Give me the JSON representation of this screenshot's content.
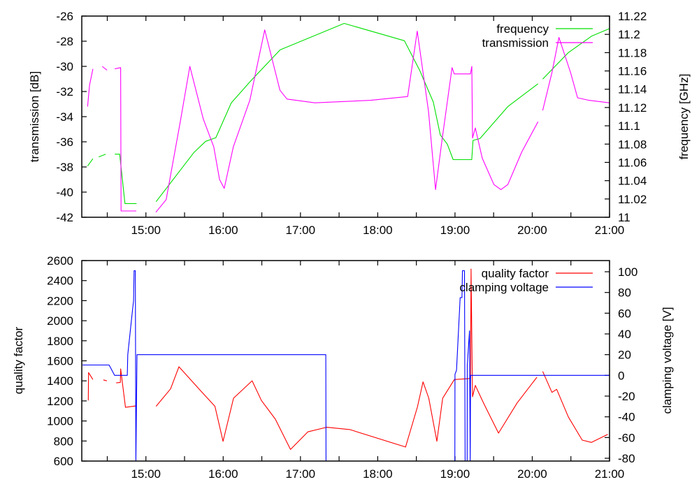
{
  "chart_data": [
    {
      "type": "line",
      "xlabel": "",
      "ylabel": "transmission [dB]",
      "y2label": "frequency [GHz]",
      "xlim": [
        14.17,
        21.0
      ],
      "ylim": [
        -42,
        -26
      ],
      "y2lim": [
        11,
        11.22
      ],
      "xticks": [
        "15:00",
        "16:00",
        "17:00",
        "18:00",
        "19:00",
        "20:00",
        "21:00"
      ],
      "xtick_values": [
        15,
        16,
        17,
        18,
        19,
        20,
        21
      ],
      "yticks": [
        -26,
        -28,
        -30,
        -32,
        -34,
        -36,
        -38,
        -40,
        -42
      ],
      "y2ticks": [
        "11.22",
        "11.2",
        "11.18",
        "11.16",
        "11.14",
        "11.12",
        "11.1",
        "11.08",
        "11.06",
        "11.04",
        "11.02",
        "11"
      ],
      "legend_position": "top-right",
      "series": [
        {
          "name": "frequency",
          "axis": "y2",
          "color": "#00e000",
          "segments": [
            [
              [
                14.245,
                11.056
              ],
              [
                14.314,
                11.064
              ]
            ],
            [
              [
                14.389,
                11.066
              ],
              [
                14.479,
                11.069
              ]
            ],
            [
              [
                14.597,
                11.069
              ],
              [
                14.66,
                11.069
              ],
              [
                14.729,
                11.015
              ],
              [
                14.879,
                11.015
              ]
            ],
            [
              [
                15.132,
                11.017
              ],
              [
                15.623,
                11.071
              ],
              [
                15.773,
                11.083
              ],
              [
                15.905,
                11.087
              ],
              [
                16.104,
                11.125
              ],
              [
                16.345,
                11.148
              ],
              [
                16.736,
                11.183
              ],
              [
                17.566,
                11.212
              ],
              [
                18.345,
                11.193
              ],
              [
                18.541,
                11.161
              ],
              [
                18.719,
                11.126
              ],
              [
                18.81,
                11.09
              ],
              [
                18.9,
                11.08
              ],
              [
                18.976,
                11.063
              ],
              [
                19.217,
                11.063
              ],
              [
                19.233,
                11.084
              ],
              [
                19.323,
                11.086
              ],
              [
                19.684,
                11.121
              ],
              [
                20.075,
                11.146
              ]
            ],
            [
              [
                20.135,
                11.151
              ],
              [
                20.466,
                11.18
              ],
              [
                20.767,
                11.198
              ],
              [
                20.993,
                11.206
              ]
            ]
          ]
        },
        {
          "name": "transmission",
          "axis": "y",
          "color": "#ff00ff",
          "segments": [
            [
              [
                14.245,
                -33.2
              ],
              [
                14.27,
                -31.5
              ],
              [
                14.314,
                -30.2
              ]
            ],
            [
              [
                14.434,
                -30.0
              ],
              [
                14.497,
                -30.3
              ]
            ],
            [
              [
                14.597,
                -30.2
              ],
              [
                14.673,
                -30.1
              ],
              [
                14.678,
                -41.5
              ],
              [
                14.876,
                -41.5
              ]
            ],
            [
              [
                15.129,
                -41.6
              ],
              [
                15.262,
                -40.6
              ],
              [
                15.442,
                -34.5
              ],
              [
                15.569,
                -30.0
              ],
              [
                15.743,
                -34.2
              ],
              [
                15.878,
                -36.4
              ],
              [
                15.953,
                -39.0
              ],
              [
                16.014,
                -39.7
              ],
              [
                16.131,
                -36.4
              ],
              [
                16.345,
                -32.7
              ],
              [
                16.537,
                -27.1
              ],
              [
                16.735,
                -31.9
              ],
              [
                16.826,
                -32.6
              ],
              [
                17.187,
                -32.9
              ],
              [
                17.909,
                -32.7
              ],
              [
                18.387,
                -32.4
              ],
              [
                18.511,
                -27.2
              ],
              [
                18.658,
                -33.6
              ],
              [
                18.748,
                -39.8
              ],
              [
                18.838,
                -35.6
              ],
              [
                18.962,
                -30.1
              ],
              [
                18.99,
                -30.6
              ],
              [
                19.2,
                -30.6
              ],
              [
                19.218,
                -30.0
              ],
              [
                19.227,
                -35.7
              ],
              [
                19.263,
                -34.9
              ],
              [
                19.353,
                -37.3
              ],
              [
                19.504,
                -39.4
              ],
              [
                19.594,
                -39.8
              ],
              [
                19.684,
                -39.4
              ],
              [
                19.865,
                -36.8
              ],
              [
                20.075,
                -34.4
              ]
            ],
            [
              [
                20.135,
                -33.5
              ],
              [
                20.255,
                -30.5
              ],
              [
                20.345,
                -27.7
              ],
              [
                20.496,
                -30.5
              ],
              [
                20.587,
                -32.5
              ],
              [
                20.734,
                -32.7
              ],
              [
                21.0,
                -32.9
              ]
            ]
          ]
        }
      ]
    },
    {
      "type": "line",
      "xlabel": "",
      "ylabel": "quality factor",
      "y2label": "clamping voltage [V]",
      "xlim": [
        14.17,
        21.0
      ],
      "ylim": [
        600,
        2600
      ],
      "y2lim": [
        -82.7,
        110.8
      ],
      "xticks": [
        "15:00",
        "16:00",
        "17:00",
        "18:00",
        "19:00",
        "20:00",
        "21:00"
      ],
      "xtick_values": [
        15,
        16,
        17,
        18,
        19,
        20,
        21
      ],
      "yticks": [
        2600,
        2400,
        2200,
        2000,
        1800,
        1600,
        1400,
        1200,
        1000,
        800,
        600
      ],
      "y2ticks": [
        100,
        80,
        60,
        40,
        20,
        0,
        -20,
        -40,
        -60,
        -80
      ],
      "legend_position": "top-right",
      "series": [
        {
          "name": "quality factor",
          "axis": "y",
          "color": "#ff0000",
          "segments": [
            [
              [
                14.254,
                1204
              ],
              [
                14.258,
                1483
              ],
              [
                14.314,
                1413
              ]
            ],
            [
              [
                14.449,
                1410
              ],
              [
                14.495,
                1400
              ]
            ],
            [
              [
                14.615,
                1380
              ],
              [
                14.669,
                1385
              ],
              [
                14.673,
                1520
              ],
              [
                14.735,
                1136
              ],
              [
                14.87,
                1150
              ]
            ],
            [
              [
                15.132,
                1146
              ],
              [
                15.319,
                1320
              ],
              [
                15.427,
                1541
              ],
              [
                15.713,
                1297
              ],
              [
                15.893,
                1146
              ],
              [
                15.998,
                797
              ],
              [
                16.134,
                1227
              ],
              [
                16.375,
                1401
              ],
              [
                16.495,
                1204
              ],
              [
                16.675,
                1018
              ],
              [
                16.871,
                716
              ],
              [
                17.096,
                891
              ],
              [
                17.338,
                937
              ],
              [
                17.638,
                914
              ],
              [
                18.36,
                740
              ],
              [
                18.514,
                1140
              ],
              [
                18.586,
                1390
              ],
              [
                18.661,
                1227
              ],
              [
                18.766,
                797
              ],
              [
                18.841,
                1227
              ],
              [
                18.992,
                1413
              ],
              [
                19.202,
                1424
              ],
              [
                19.208,
                2516
              ],
              [
                19.227,
                1241
              ],
              [
                19.263,
                1355
              ],
              [
                19.353,
                1206
              ],
              [
                19.413,
                1111
              ],
              [
                19.563,
                879
              ],
              [
                19.804,
                1180
              ],
              [
                20.06,
                1436
              ]
            ],
            [
              [
                20.135,
                1494
              ],
              [
                20.255,
                1285
              ],
              [
                20.316,
                1316
              ],
              [
                20.466,
                1041
              ],
              [
                20.646,
                809
              ],
              [
                20.767,
                786
              ],
              [
                20.977,
                867
              ]
            ]
          ]
        },
        {
          "name": "clamping voltage",
          "axis": "y2",
          "color": "#0000ff",
          "segments": [
            [
              [
                14.179,
                10
              ],
              [
                14.524,
                10
              ],
              [
                14.594,
                0
              ],
              [
                14.759,
                0
              ],
              [
                14.765,
                20
              ],
              [
                14.825,
                62
              ],
              [
                14.84,
                72
              ],
              [
                14.847,
                101
              ],
              [
                14.863,
                101
              ],
              [
                14.87,
                -83
              ],
              [
                14.885,
                20
              ],
              [
                17.328,
                20
              ],
              [
                17.331,
                -83
              ]
            ],
            [
              [
                18.998,
                -83
              ],
              [
                19.0,
                1
              ],
              [
                19.02,
                5
              ],
              [
                19.067,
                75
              ],
              [
                19.09,
                75
              ],
              [
                19.097,
                101
              ],
              [
                19.123,
                101
              ],
              [
                19.131,
                -83
              ],
              [
                19.157,
                -83
              ],
              [
                19.159,
                10
              ],
              [
                19.188,
                43
              ],
              [
                19.197,
                -83
              ],
              [
                19.202,
                0
              ],
              [
                21.0,
                0
              ]
            ]
          ]
        }
      ]
    }
  ]
}
